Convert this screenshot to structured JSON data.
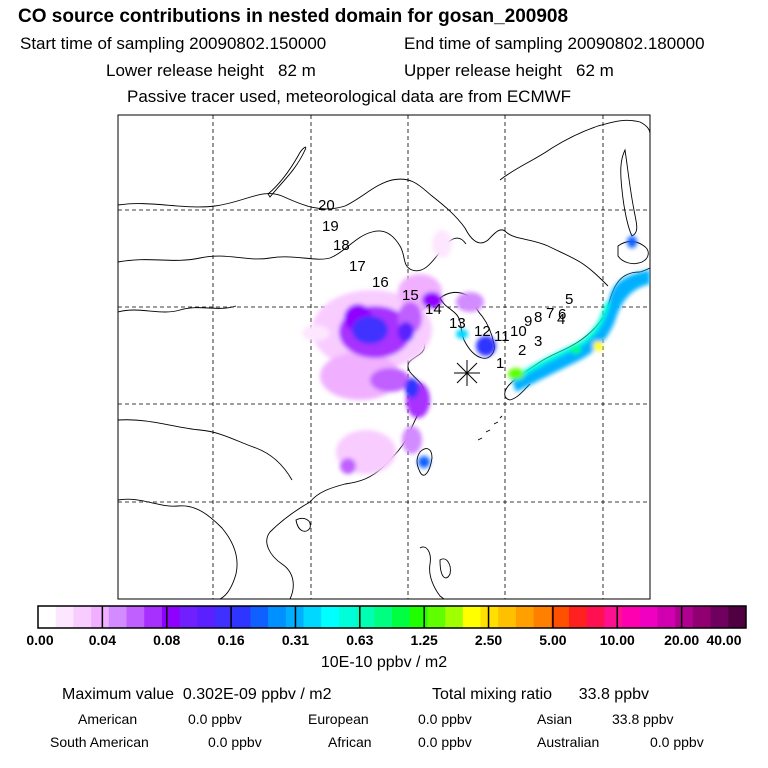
{
  "header": {
    "title": "CO  source contributions in nested domain for gosan_200908",
    "start_label": "Start time of sampling",
    "start_value": "20090802.150000",
    "end_label": "End time of sampling",
    "end_value": "20090802.180000",
    "lower_label": "Lower release height",
    "lower_value": "82 m",
    "upper_label": "Upper release height",
    "upper_value": "62 m",
    "note": "Passive tracer used, meteorological data are from ECMWF"
  },
  "map": {
    "trajectory_labels": [
      "20",
      "19",
      "18",
      "17",
      "16",
      "15",
      "14",
      "13",
      "12",
      "11",
      "10",
      "9",
      "8",
      "7",
      "6",
      "5",
      "4",
      "3",
      "2",
      "1"
    ],
    "receptor_symbol": "star"
  },
  "colorbar": {
    "ticks": [
      "0.00",
      "0.04",
      "0.08",
      "0.16",
      "0.31",
      "0.63",
      "1.25",
      "2.50",
      "5.00",
      "10.00",
      "20.00",
      "40.00"
    ],
    "unit": "10E-10 ppbv / m2",
    "colors": [
      "#ffffff",
      "#fde6ff",
      "#f8ccff",
      "#f0b0ff",
      "#d38cff",
      "#c060ff",
      "#a830ff",
      "#9000ff",
      "#7020ff",
      "#5a20ff",
      "#4030ff",
      "#2d35ff",
      "#1060ff",
      "#0090ff",
      "#00b0ff",
      "#00d8ff",
      "#00ffff",
      "#00ffd8",
      "#00ffb0",
      "#00ff80",
      "#00ff40",
      "#20ff00",
      "#60ff00",
      "#a0ff00",
      "#ffff00",
      "#ffe000",
      "#ffc000",
      "#ffa000",
      "#ff8000",
      "#ff5000",
      "#ff2020",
      "#ff1050",
      "#ff1090",
      "#ff00b0",
      "#f000c0",
      "#d000b0",
      "#b00090",
      "#900070",
      "#700060",
      "#500040"
    ]
  },
  "footer": {
    "max_label": "Maximum value",
    "max_value": "0.302E-09 ppbv / m2",
    "total_label": "Total mixing ratio",
    "total_value": "33.8 ppbv",
    "regions": [
      {
        "name": "American",
        "value": "0.0 ppbv"
      },
      {
        "name": "European",
        "value": "0.0 ppbv"
      },
      {
        "name": "Asian",
        "value": "33.8 ppbv"
      },
      {
        "name": "South American",
        "value": "0.0 ppbv"
      },
      {
        "name": "African",
        "value": "0.0 ppbv"
      },
      {
        "name": "Australian",
        "value": "0.0 ppbv"
      }
    ]
  }
}
